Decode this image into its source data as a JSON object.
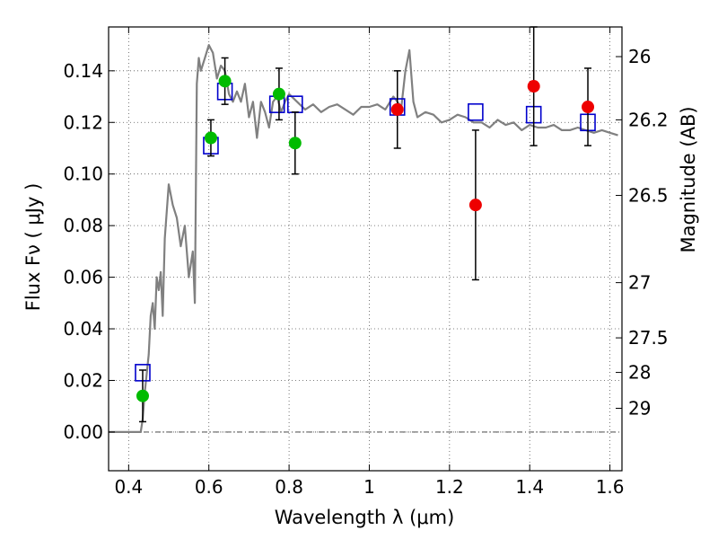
{
  "chart_data": {
    "type": "scatter",
    "title": "",
    "xlabel": "Wavelength  λ (μm)",
    "ylabel": "Flux  Fν  ( μJy )",
    "ylabel_right": "Magnitude (AB)",
    "xlim": [
      0.35,
      1.63
    ],
    "ylim": [
      -0.015,
      0.157
    ],
    "grid": true,
    "x_ticks": [
      0.4,
      0.6,
      0.8,
      1.0,
      1.2,
      1.4,
      1.6
    ],
    "x_tick_labels": [
      "0.4",
      "0.6",
      "0.8",
      "1",
      "1.2",
      "1.4",
      "1.6"
    ],
    "y_ticks": [
      0.0,
      0.02,
      0.04,
      0.06,
      0.08,
      0.1,
      0.12,
      0.14
    ],
    "y_tick_labels": [
      "0.00",
      "0.02",
      "0.04",
      "0.06",
      "0.08",
      "0.10",
      "0.12",
      "0.14"
    ],
    "right_ticks": [
      {
        "label": "26",
        "flux": 0.1455
      },
      {
        "label": "26.2",
        "flux": 0.121
      },
      {
        "label": "26.5",
        "flux": 0.0917
      },
      {
        "label": "27",
        "flux": 0.0579
      },
      {
        "label": "27.5",
        "flux": 0.0365
      },
      {
        "label": "28",
        "flux": 0.0231
      },
      {
        "label": "29",
        "flux": 0.0092
      }
    ],
    "colors": {
      "template": "#808080",
      "model_box": "#0000cc",
      "green": "#00bb00",
      "red": "#ee0000",
      "errorbar": "#000000"
    },
    "series": [
      {
        "kind": "template",
        "x": [
          0.35,
          0.43,
          0.435,
          0.44,
          0.45,
          0.455,
          0.46,
          0.465,
          0.47,
          0.475,
          0.48,
          0.485,
          0.49,
          0.5,
          0.51,
          0.52,
          0.53,
          0.54,
          0.55,
          0.56,
          0.565,
          0.57,
          0.575,
          0.58,
          0.59,
          0.6,
          0.61,
          0.62,
          0.63,
          0.64,
          0.65,
          0.66,
          0.67,
          0.68,
          0.69,
          0.7,
          0.71,
          0.72,
          0.73,
          0.74,
          0.75,
          0.76,
          0.77,
          0.78,
          0.79,
          0.8,
          0.82,
          0.84,
          0.86,
          0.88,
          0.9,
          0.92,
          0.94,
          0.96,
          0.98,
          1.0,
          1.02,
          1.04,
          1.06,
          1.08,
          1.09,
          1.1,
          1.11,
          1.12,
          1.14,
          1.16,
          1.18,
          1.2,
          1.22,
          1.24,
          1.26,
          1.28,
          1.3,
          1.32,
          1.34,
          1.36,
          1.38,
          1.4,
          1.42,
          1.44,
          1.46,
          1.48,
          1.5,
          1.52,
          1.54,
          1.56,
          1.58,
          1.6,
          1.62
        ],
        "y": [
          0.0,
          0.0,
          0.005,
          0.015,
          0.03,
          0.045,
          0.05,
          0.04,
          0.06,
          0.055,
          0.062,
          0.045,
          0.075,
          0.096,
          0.088,
          0.083,
          0.072,
          0.08,
          0.06,
          0.07,
          0.05,
          0.135,
          0.145,
          0.14,
          0.145,
          0.15,
          0.147,
          0.137,
          0.142,
          0.14,
          0.131,
          0.128,
          0.132,
          0.128,
          0.135,
          0.122,
          0.128,
          0.114,
          0.128,
          0.124,
          0.118,
          0.128,
          0.13,
          0.124,
          0.128,
          0.131,
          0.128,
          0.125,
          0.127,
          0.124,
          0.126,
          0.127,
          0.125,
          0.123,
          0.126,
          0.126,
          0.127,
          0.125,
          0.13,
          0.126,
          0.14,
          0.148,
          0.128,
          0.122,
          0.124,
          0.123,
          0.12,
          0.121,
          0.123,
          0.122,
          0.12,
          0.12,
          0.118,
          0.121,
          0.119,
          0.12,
          0.117,
          0.119,
          0.118,
          0.118,
          0.119,
          0.117,
          0.117,
          0.118,
          0.117,
          0.116,
          0.117,
          0.116,
          0.115
        ]
      },
      {
        "kind": "model-boxes",
        "x": [
          0.435,
          0.605,
          0.64,
          0.77,
          0.815,
          1.07,
          1.265,
          1.41,
          1.545
        ],
        "y": [
          0.023,
          0.111,
          0.132,
          0.127,
          0.127,
          0.126,
          0.124,
          0.123,
          0.12
        ]
      },
      {
        "kind": "observed",
        "color": "green",
        "x": [
          0.435,
          0.605,
          0.64,
          0.775,
          0.815
        ],
        "y": [
          0.014,
          0.114,
          0.136,
          0.131,
          0.112
        ],
        "yerr": [
          0.01,
          0.007,
          0.009,
          0.01,
          0.012
        ]
      },
      {
        "kind": "observed",
        "color": "red",
        "x": [
          1.07,
          1.265,
          1.41,
          1.545
        ],
        "y": [
          0.125,
          0.088,
          0.134,
          0.126
        ],
        "yerr": [
          0.015,
          0.029,
          0.023,
          0.015
        ]
      }
    ]
  }
}
